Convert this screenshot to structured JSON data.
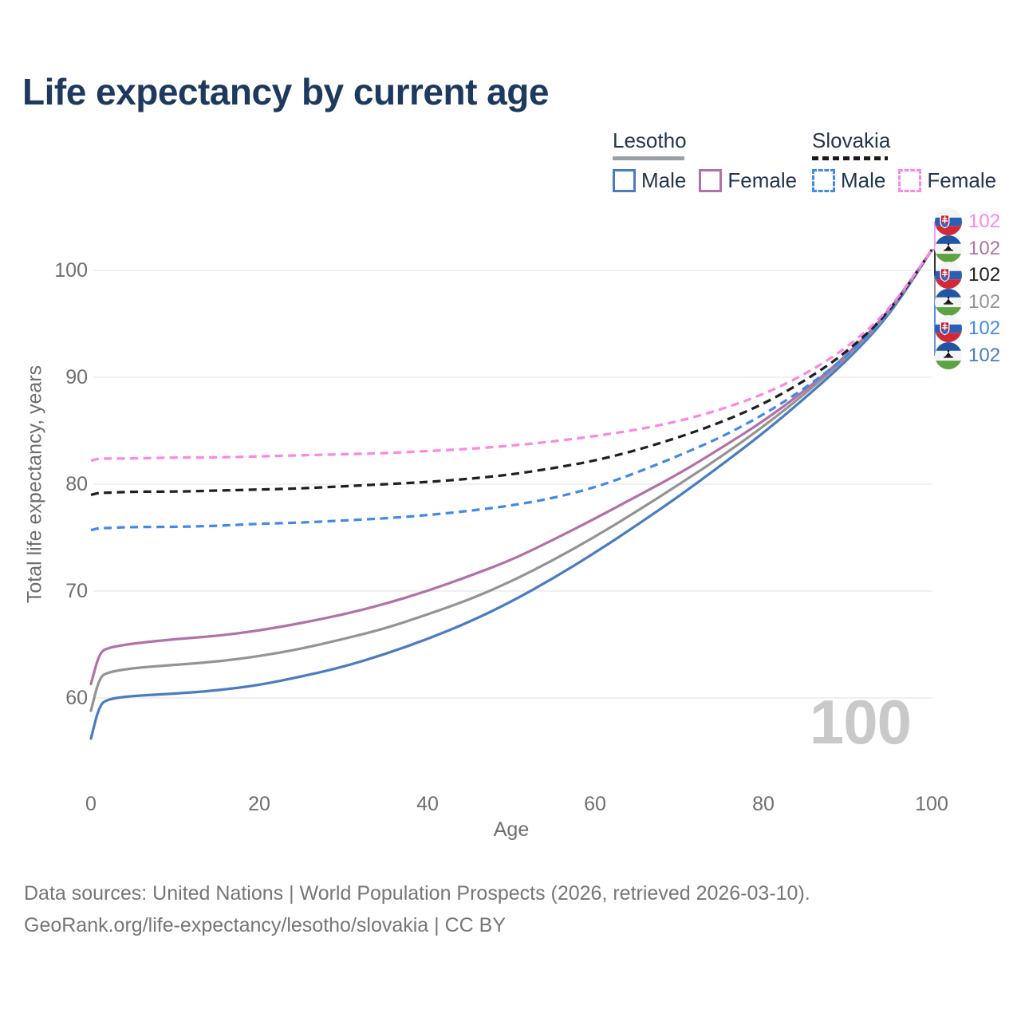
{
  "title": "Life expectancy by current age",
  "watermark": "100",
  "legend": {
    "groups": [
      {
        "country": "Lesotho",
        "line_style": "solid",
        "items": [
          {
            "label": "Male",
            "color": "#4a7cc2"
          },
          {
            "label": "Female",
            "color": "#b171a9"
          }
        ]
      },
      {
        "country": "Slovakia",
        "line_style": "dashed",
        "items": [
          {
            "label": "Male",
            "color": "#4489e8"
          },
          {
            "label": "Female",
            "color": "#fb87e6"
          }
        ]
      }
    ]
  },
  "chart_data": {
    "type": "line",
    "title": "Life expectancy by current age",
    "xlabel": "Age",
    "ylabel": "Total life expectancy, years",
    "xlim": [
      0,
      100
    ],
    "ylim": [
      55,
      103
    ],
    "xticks": [
      0,
      20,
      40,
      60,
      80,
      100
    ],
    "yticks": [
      60,
      70,
      80,
      90,
      100
    ],
    "grid": "horizontal",
    "legend_position": "top-right",
    "x": [
      0,
      1,
      2,
      5,
      10,
      15,
      20,
      25,
      30,
      35,
      40,
      45,
      50,
      55,
      60,
      65,
      70,
      75,
      80,
      85,
      90,
      95,
      100
    ],
    "series": [
      {
        "id": "lesotho-male",
        "name": "Lesotho Male",
        "country": "Lesotho",
        "sex": "Male",
        "color": "#4a7cc2",
        "dash": false,
        "values": [
          56.2,
          59.3,
          59.9,
          60.2,
          60.4,
          60.7,
          61.2,
          62.0,
          62.9,
          64.1,
          65.5,
          67.1,
          69.0,
          71.2,
          73.6,
          76.2,
          78.9,
          81.8,
          84.8,
          88.1,
          91.6,
          95.8,
          101.9
        ]
      },
      {
        "id": "lesotho-total",
        "name": "Lesotho Both sexes",
        "country": "Lesotho",
        "sex": "Both",
        "color": "#949494",
        "dash": false,
        "values": [
          58.8,
          61.9,
          62.4,
          62.8,
          63.1,
          63.4,
          63.9,
          64.6,
          65.5,
          66.5,
          67.8,
          69.2,
          70.9,
          72.9,
          75.1,
          77.5,
          80.0,
          82.6,
          85.4,
          88.5,
          91.9,
          96.0,
          101.9
        ]
      },
      {
        "id": "lesotho-female",
        "name": "Lesotho Female",
        "country": "Lesotho",
        "sex": "Female",
        "color": "#b171a9",
        "dash": false,
        "values": [
          61.3,
          64.2,
          64.7,
          65.1,
          65.5,
          65.8,
          66.3,
          67.0,
          67.8,
          68.8,
          70.0,
          71.4,
          72.9,
          74.8,
          76.8,
          78.9,
          81.0,
          83.4,
          85.9,
          88.8,
          92.1,
          96.2,
          101.9
        ]
      },
      {
        "id": "slovakia-male",
        "name": "Slovakia Male",
        "country": "Slovakia",
        "sex": "Male",
        "color": "#4489e8",
        "dash": true,
        "values": [
          75.7,
          75.9,
          75.9,
          76.0,
          76.0,
          76.1,
          76.3,
          76.4,
          76.6,
          76.8,
          77.1,
          77.5,
          78.0,
          78.7,
          79.7,
          81.1,
          82.7,
          84.4,
          86.5,
          89.0,
          92.0,
          95.9,
          101.9
        ]
      },
      {
        "id": "slovakia-total",
        "name": "Slovakia Both sexes",
        "country": "Slovakia",
        "sex": "Both",
        "color": "#1f1f1f",
        "dash": true,
        "values": [
          79.0,
          79.2,
          79.2,
          79.3,
          79.3,
          79.4,
          79.5,
          79.6,
          79.8,
          80.0,
          80.2,
          80.5,
          80.9,
          81.5,
          82.2,
          83.2,
          84.4,
          85.8,
          87.5,
          89.7,
          92.4,
          96.1,
          101.9
        ]
      },
      {
        "id": "slovakia-female",
        "name": "Slovakia Female",
        "country": "Slovakia",
        "sex": "Female",
        "color": "#fb87e6",
        "dash": true,
        "values": [
          82.2,
          82.4,
          82.4,
          82.4,
          82.5,
          82.5,
          82.6,
          82.7,
          82.8,
          82.9,
          83.1,
          83.3,
          83.6,
          84.0,
          84.5,
          85.1,
          85.9,
          87.0,
          88.4,
          90.3,
          92.8,
          96.3,
          101.9
        ]
      }
    ]
  },
  "end_labels": [
    {
      "flag": "slovakia",
      "series": "Slovakia Female",
      "value": "102",
      "color": "#fb87e6"
    },
    {
      "flag": "lesotho",
      "series": "Lesotho Female",
      "value": "102",
      "color": "#b171a9"
    },
    {
      "flag": "slovakia",
      "series": "Slovakia Both sexes",
      "value": "102",
      "color": "#1f1f1f"
    },
    {
      "flag": "lesotho",
      "series": "Lesotho Both sexes",
      "value": "102",
      "color": "#949494"
    },
    {
      "flag": "slovakia",
      "series": "Slovakia Male",
      "value": "102",
      "color": "#4489e8"
    },
    {
      "flag": "lesotho",
      "series": "Lesotho Male",
      "value": "102",
      "color": "#4a7cc2"
    }
  ],
  "footer": {
    "line1": "Data sources: United Nations | World Population Prospects (2026, retrieved 2026-03-10).",
    "line2": "GeoRank.org/life-expectancy/lesotho/slovakia | CC BY"
  }
}
